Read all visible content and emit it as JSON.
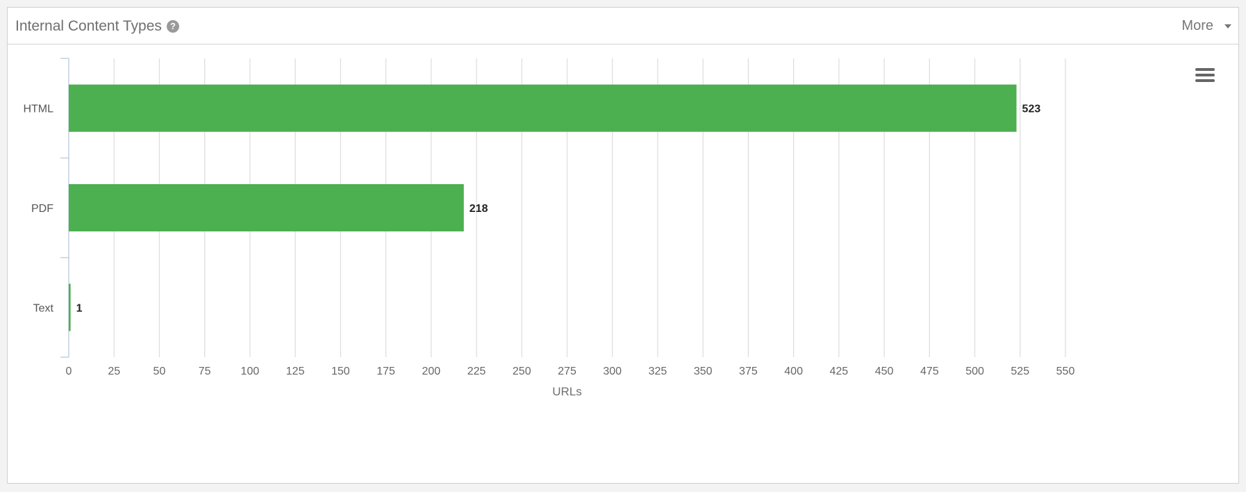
{
  "panel": {
    "title": "Internal Content Types",
    "help_icon": "question-circle-icon",
    "more_label": "More",
    "more_icon": "caret-down-icon",
    "export_menu_icon": "hamburger-menu-icon"
  },
  "chart_data": {
    "type": "bar",
    "orientation": "horizontal",
    "categories": [
      "HTML",
      "PDF",
      "Text"
    ],
    "values": [
      523,
      218,
      1
    ],
    "data_labels": [
      "523",
      "218",
      "1"
    ],
    "xlabel": "URLs",
    "xlim": [
      0,
      550
    ],
    "xticks": [
      0,
      25,
      50,
      75,
      100,
      125,
      150,
      175,
      200,
      225,
      250,
      275,
      300,
      325,
      350,
      375,
      400,
      425,
      450,
      475,
      500,
      525,
      550
    ],
    "grid": true,
    "bar_color": "#4caf50",
    "grid_color": "#dcdcdc",
    "axis_color": "#c0d0e0"
  }
}
